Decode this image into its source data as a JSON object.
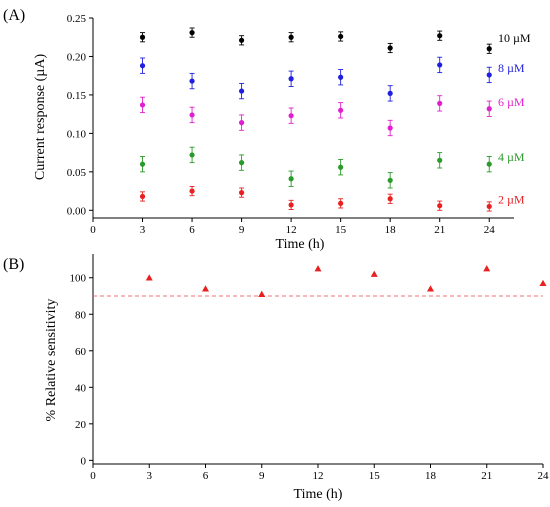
{
  "chart_data": [
    {
      "type": "scatter",
      "panel_label": "(A)",
      "xlabel": "Time (h)",
      "ylabel": "Current response (µA)",
      "xlim": [
        0,
        25.5
      ],
      "ylim": [
        -0.01,
        0.25
      ],
      "xticks": [
        "0",
        "3",
        "6",
        "9",
        "12",
        "15",
        "18",
        "21",
        "24"
      ],
      "yticks": [
        "0.00",
        "0.05",
        "0.10",
        "0.15",
        "0.20",
        "0.25"
      ],
      "error_bars": true,
      "x": [
        3,
        6,
        9,
        12,
        15,
        18,
        21,
        24
      ],
      "series": [
        {
          "name": "10 µM",
          "color": "#000000",
          "values": [
            0.225,
            0.231,
            0.221,
            0.225,
            0.226,
            0.211,
            0.227,
            0.21
          ],
          "errors": [
            0.006,
            0.006,
            0.006,
            0.006,
            0.006,
            0.006,
            0.006,
            0.006
          ]
        },
        {
          "name": "8 µM",
          "color": "#1f1fe0",
          "values": [
            0.188,
            0.168,
            0.155,
            0.171,
            0.173,
            0.152,
            0.189,
            0.176
          ],
          "errors": [
            0.01,
            0.01,
            0.01,
            0.01,
            0.01,
            0.01,
            0.01,
            0.01
          ]
        },
        {
          "name": "6 µM",
          "color": "#e020d0",
          "values": [
            0.137,
            0.124,
            0.114,
            0.123,
            0.13,
            0.107,
            0.139,
            0.132
          ],
          "errors": [
            0.01,
            0.01,
            0.01,
            0.01,
            0.01,
            0.01,
            0.01,
            0.01
          ]
        },
        {
          "name": "4 µM",
          "color": "#2a9a2a",
          "values": [
            0.06,
            0.072,
            0.062,
            0.041,
            0.056,
            0.039,
            0.065,
            0.06
          ],
          "errors": [
            0.01,
            0.01,
            0.01,
            0.01,
            0.01,
            0.01,
            0.01,
            0.01
          ]
        },
        {
          "name": "2 µM",
          "color": "#e82020",
          "values": [
            0.018,
            0.025,
            0.023,
            0.007,
            0.009,
            0.015,
            0.006,
            0.005
          ],
          "errors": [
            0.006,
            0.006,
            0.006,
            0.006,
            0.006,
            0.006,
            0.006,
            0.006
          ]
        }
      ]
    },
    {
      "type": "scatter",
      "panel_label": "(B)",
      "xlabel": "Time (h)",
      "ylabel": "% Relative sensitivity",
      "xlim": [
        0,
        24
      ],
      "ylim": [
        -2,
        113
      ],
      "xticks": [
        "0",
        "3",
        "6",
        "9",
        "12",
        "15",
        "18",
        "21",
        "24"
      ],
      "yticks": [
        "0",
        "20",
        "40",
        "60",
        "80",
        "100"
      ],
      "marker": "triangle",
      "x": [
        3,
        6,
        9,
        12,
        15,
        18,
        21,
        24
      ],
      "series": [
        {
          "color": "#e82020",
          "values": [
            100,
            94,
            91,
            105,
            102,
            94,
            105,
            97
          ]
        }
      ],
      "reference_line": {
        "y": 90,
        "color": "#f07070",
        "style": "dashed"
      }
    }
  ]
}
